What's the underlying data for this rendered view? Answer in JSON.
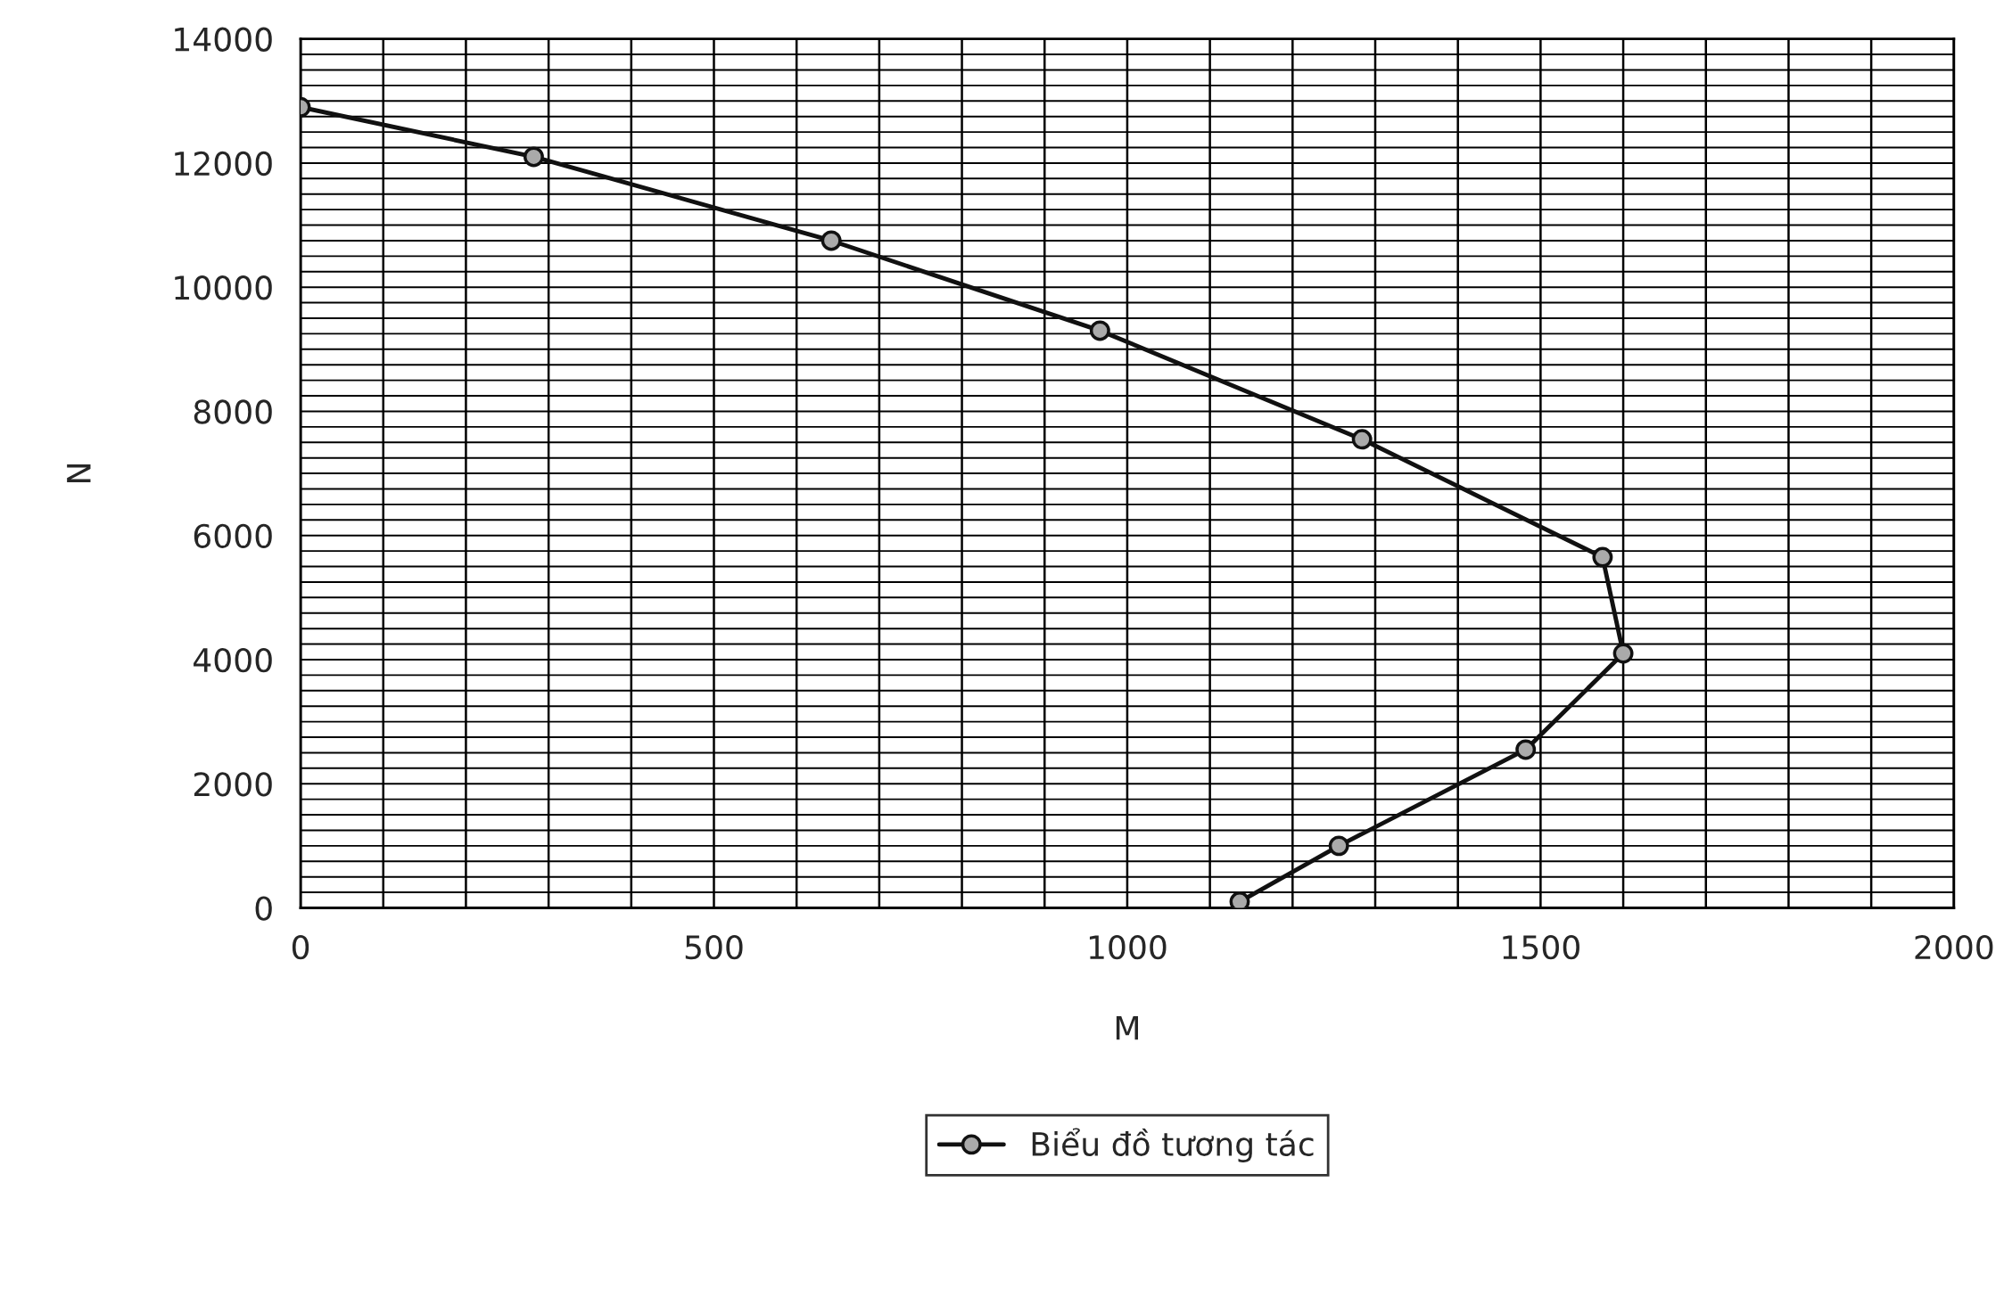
{
  "chart_data": {
    "type": "line",
    "xlabel": "M",
    "ylabel": "N",
    "x": [
      0,
      282,
      642,
      967,
      1284,
      1575,
      1600,
      1482,
      1256,
      1136
    ],
    "series": [
      {
        "name": "Biểu đồ tương tác",
        "color": "#111111",
        "values": [
          12900,
          12100,
          10750,
          9300,
          7550,
          5650,
          4100,
          2550,
          1000,
          100
        ]
      }
    ],
    "xlim": [
      0,
      2000
    ],
    "xticks": [
      0,
      500,
      1000,
      1500,
      2000
    ],
    "ylim": [
      0,
      14000
    ],
    "yticks": [
      0,
      2000,
      4000,
      6000,
      8000,
      10000,
      12000,
      14000
    ],
    "grid": true,
    "legend": "bottom",
    "marker": "circle",
    "line_style": "solid"
  }
}
